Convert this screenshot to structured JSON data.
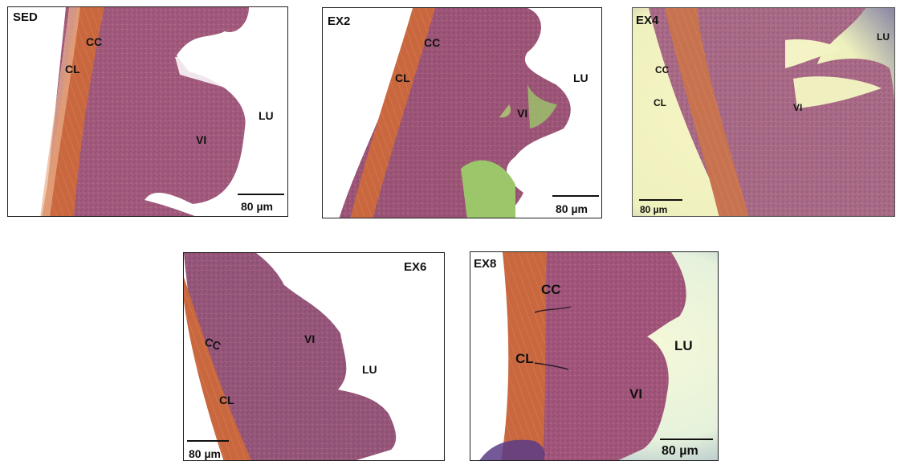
{
  "panels": [
    {
      "id": "SED",
      "title": "SED",
      "labels": {
        "cc": "CC",
        "cl": "CL",
        "vi": "VI",
        "lu": "LU"
      },
      "scale": "80 µm"
    },
    {
      "id": "EX2",
      "title": "EX2",
      "labels": {
        "cc": "CC",
        "cl": "CL",
        "vi": "VI",
        "lu": "LU"
      },
      "scale": "80 µm"
    },
    {
      "id": "EX4",
      "title": "EX4",
      "labels": {
        "cc": "CC",
        "cl": "CL",
        "vi": "VI",
        "lu": "LU"
      },
      "scale": "80 µm"
    },
    {
      "id": "EX6",
      "title": "EX6",
      "labels": {
        "cc": "CC",
        "cl": "CL",
        "vi": "VI",
        "lu": "LU"
      },
      "scale": "80 µm"
    },
    {
      "id": "EX8",
      "title": "EX8",
      "labels": {
        "cc": "CC",
        "cl": "CL",
        "vi": "VI",
        "lu": "LU"
      },
      "scale": "80 µm"
    }
  ],
  "colors": {
    "tissue_mucosa": "#a15a7c",
    "tissue_muscle": "#c9673f",
    "background_white": "#ffffff",
    "background_yellow": "#eef2c8",
    "background_cyan": "#d9f0e8"
  }
}
